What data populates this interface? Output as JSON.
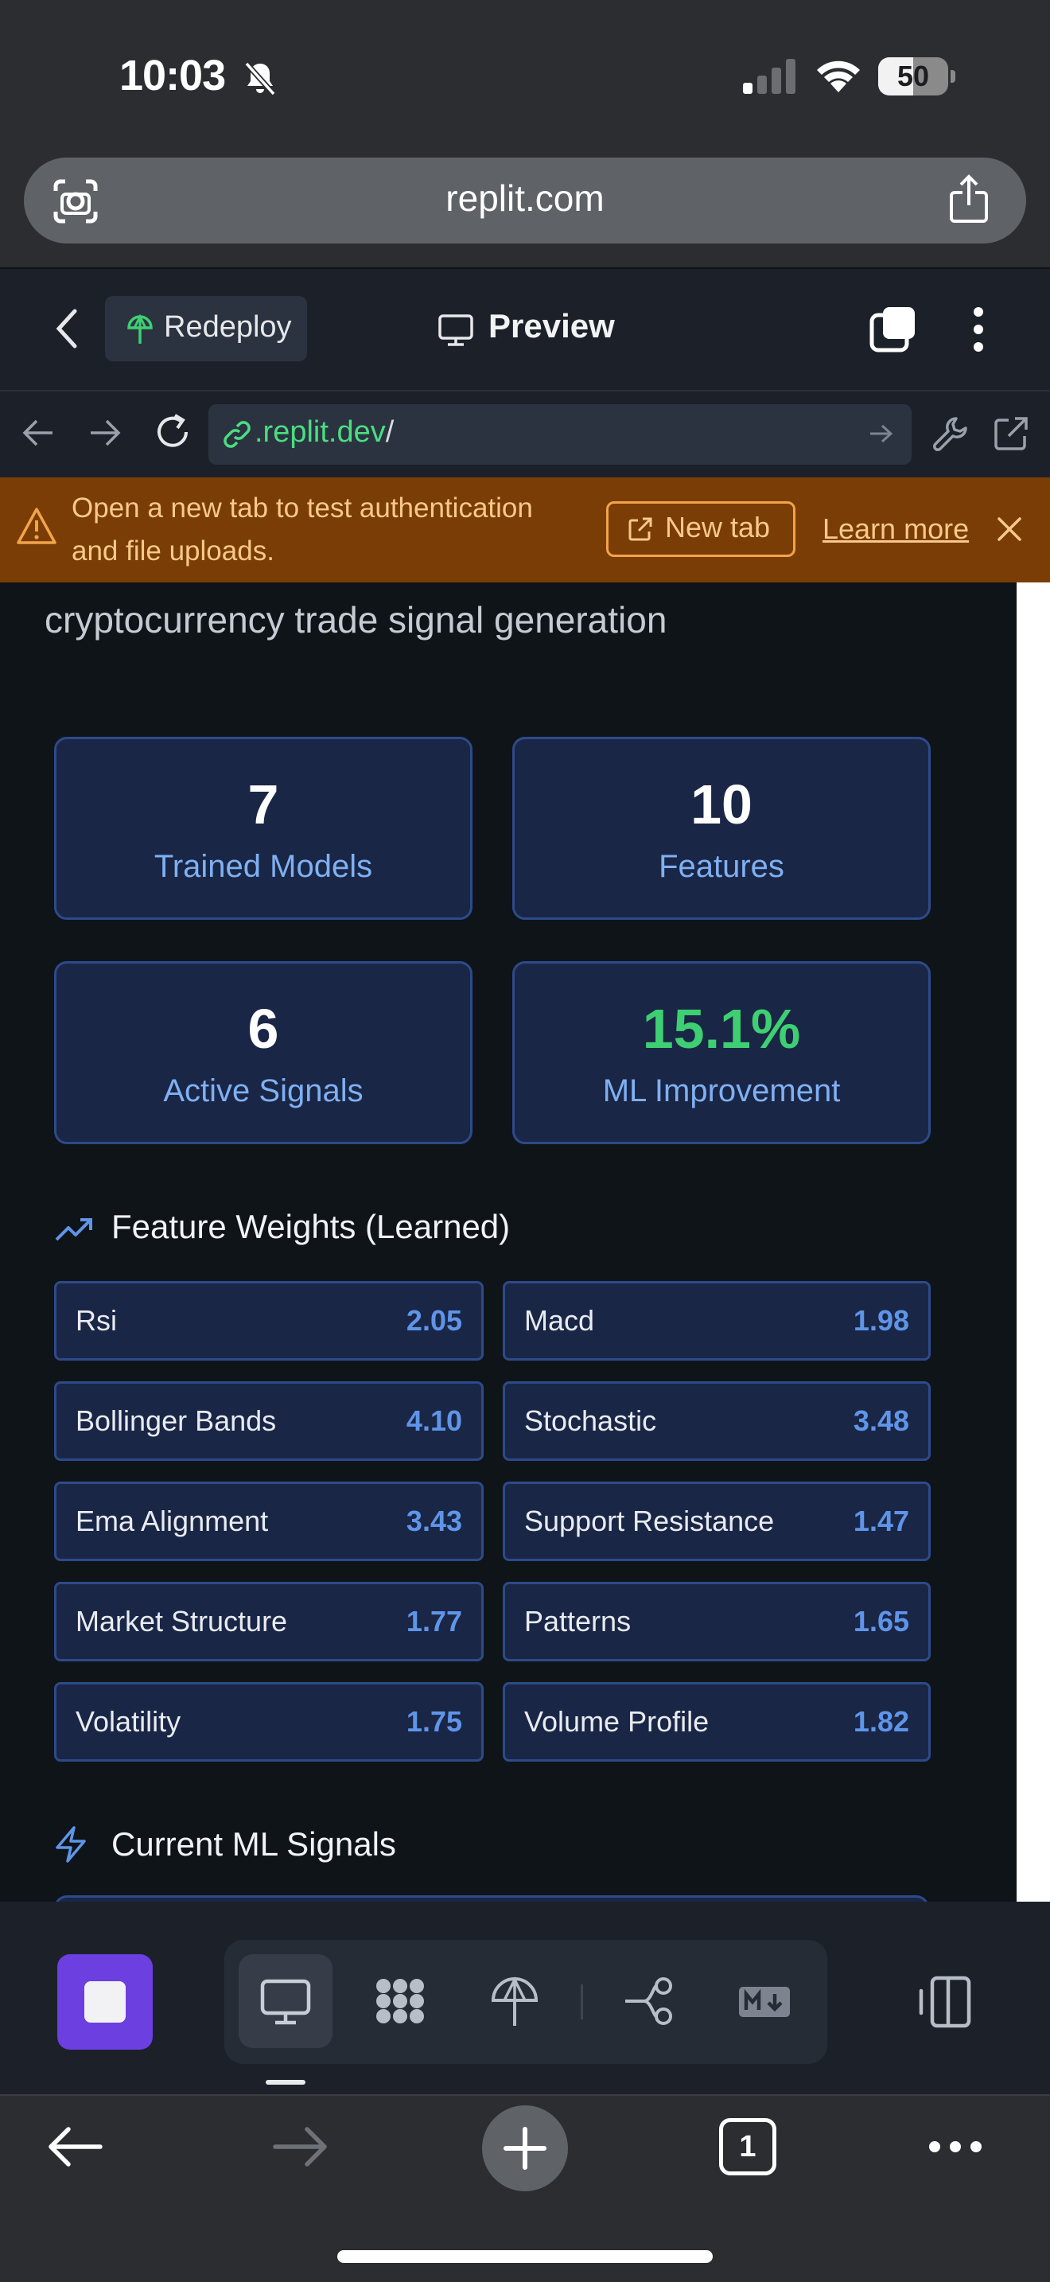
{
  "status_bar": {
    "time": "10:03",
    "battery": "50",
    "battery_level": 0.5
  },
  "browser": {
    "url_host": "replit.com"
  },
  "replit_header": {
    "redeploy_label": "Redeploy",
    "preview_label": "Preview"
  },
  "webview_nav": {
    "address_domain": ".replit.dev",
    "address_path": "/"
  },
  "banner": {
    "message": "Open a new tab to test authentication and file uploads.",
    "new_tab_label": "New tab",
    "learn_more_label": "Learn more"
  },
  "app": {
    "hero_subtitle": "cryptocurrency trade signal generation",
    "stats": [
      {
        "value": "7",
        "label": "Trained Models"
      },
      {
        "value": "10",
        "label": "Features"
      },
      {
        "value": "6",
        "label": "Active Signals"
      },
      {
        "value": "15.1%",
        "label": "ML Improvement",
        "value_color": "#3ecf72"
      }
    ],
    "feature_weights": {
      "title": "Feature Weights (Learned)",
      "items": [
        {
          "name": "Rsi",
          "value": "2.05"
        },
        {
          "name": "Macd",
          "value": "1.98"
        },
        {
          "name": "Bollinger Bands",
          "value": "4.10"
        },
        {
          "name": "Stochastic",
          "value": "3.48"
        },
        {
          "name": "Ema Alignment",
          "value": "3.43"
        },
        {
          "name": "Support Resistance",
          "value": "1.47"
        },
        {
          "name": "Market Structure",
          "value": "1.77"
        },
        {
          "name": "Patterns",
          "value": "1.65"
        },
        {
          "name": "Volatility",
          "value": "1.75"
        },
        {
          "name": "Volume Profile",
          "value": "1.82"
        }
      ]
    },
    "signals_section": {
      "title": "Current ML Signals"
    }
  },
  "toolbar": {
    "tab_count": "1"
  },
  "colors": {
    "accent_blue": "#5f95e8",
    "card_border": "#2d4a8a",
    "success_green": "#3ecf72",
    "banner_bg": "#7a3d05",
    "stop_button": "#6b3fe0"
  }
}
